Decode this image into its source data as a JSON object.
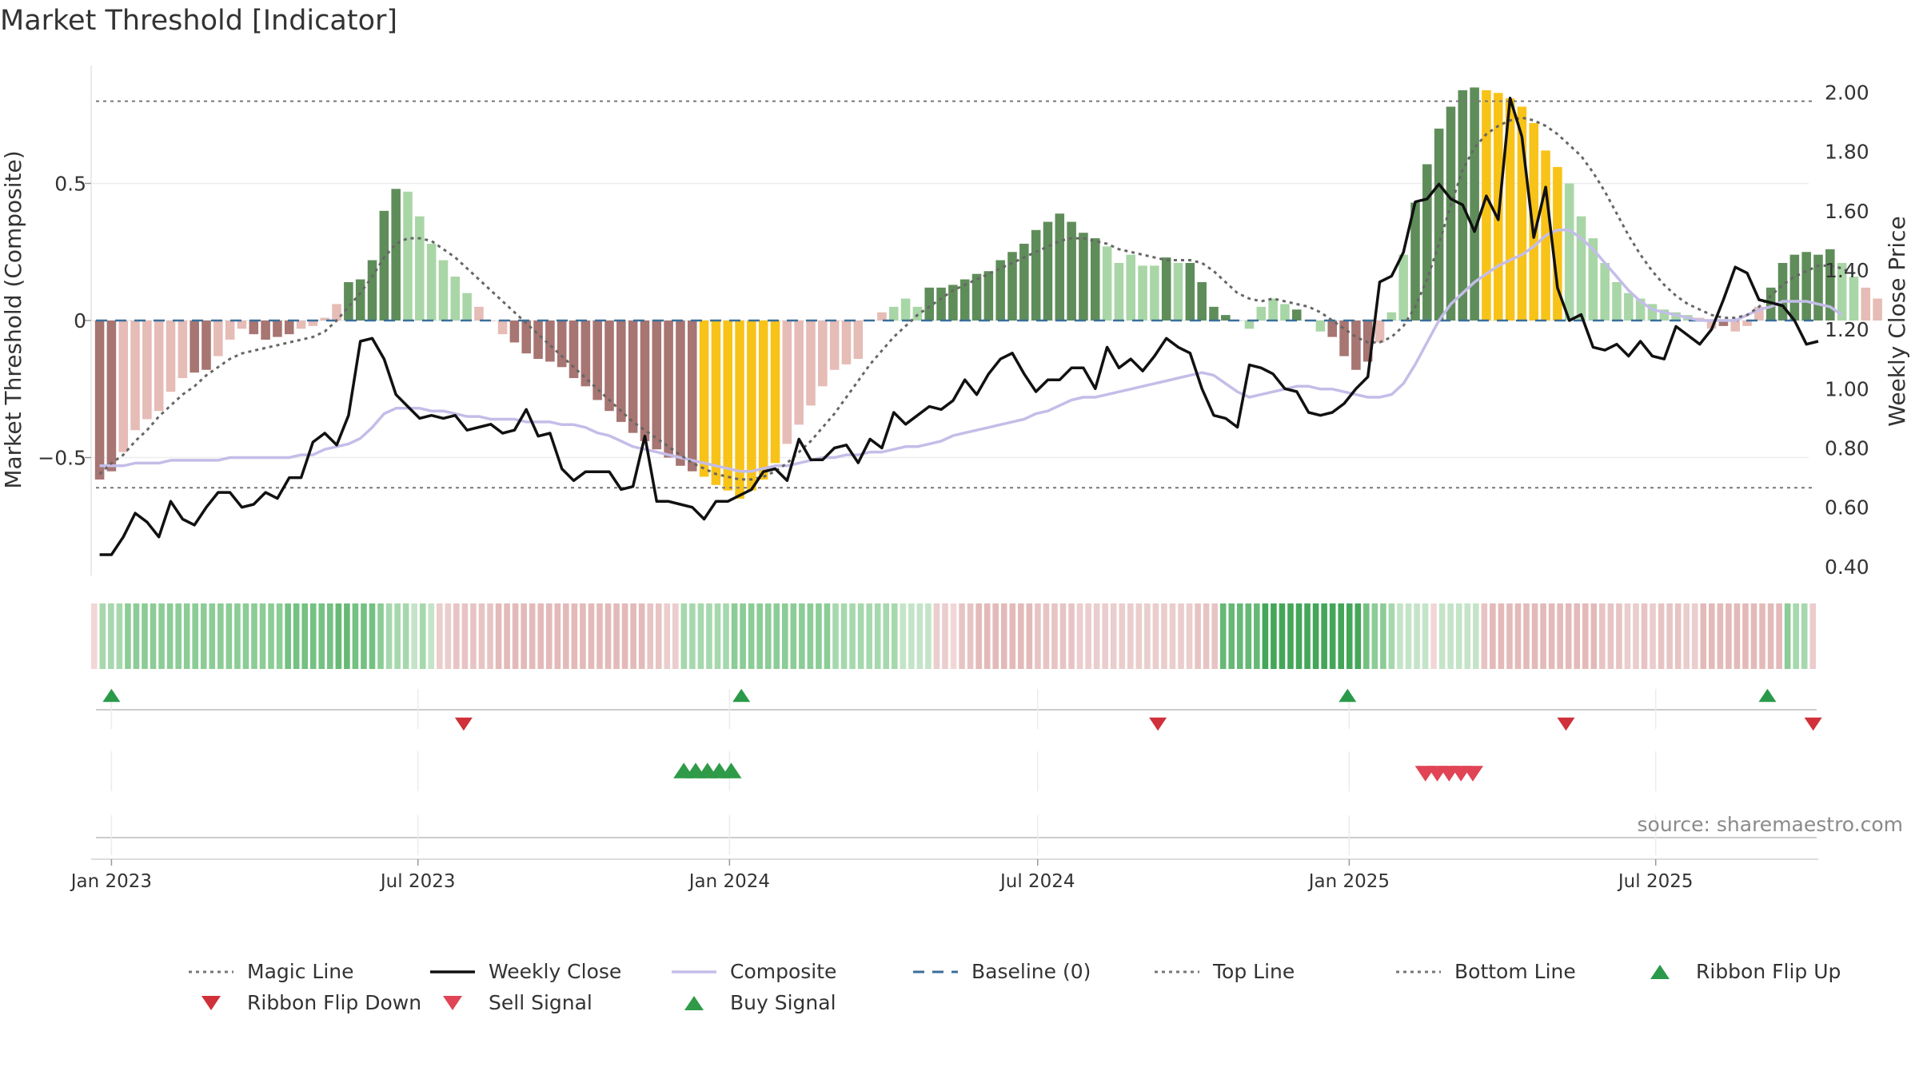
{
  "chart_data": {
    "type": "bar",
    "title": "Market Threshold [Indicator]",
    "ylabel_left": "Market Threshold (Composite)",
    "ylabel_right": "Weekly Close Price",
    "source": "source: sharemaestro.com",
    "yticks_left": [
      {
        "value": 0.5,
        "label": "0.5"
      },
      {
        "value": 0,
        "label": "0"
      },
      {
        "value": -0.5,
        "label": "−0.5"
      }
    ],
    "yticks_right": [
      "0.40",
      "0.60",
      "0.80",
      "1.00",
      "1.20",
      "1.40",
      "1.60",
      "1.80",
      "2.00"
    ],
    "xticks": [
      {
        "date": "2023-01-01",
        "label": "Jan 2023"
      },
      {
        "date": "2023-07-01",
        "label": "Jul 2023"
      },
      {
        "date": "2024-01-01",
        "label": "Jan 2024"
      },
      {
        "date": "2024-07-01",
        "label": "Jul 2024"
      },
      {
        "date": "2025-01-01",
        "label": "Jan 2025"
      },
      {
        "date": "2025-07-01",
        "label": "Jul 2025"
      }
    ],
    "x_range": [
      "2022-12-20",
      "2025-10-05"
    ],
    "ylim_left": [
      -0.93,
      0.93
    ],
    "ylim_right": [
      0.37,
      2.09
    ],
    "top_line": 0.8,
    "bottom_line": -0.61,
    "start_date": "2022-12-25",
    "week_step_days": 7,
    "composite_bars": [
      -0.58,
      -0.55,
      -0.48,
      -0.4,
      -0.36,
      -0.33,
      -0.26,
      -0.21,
      -0.19,
      -0.18,
      -0.13,
      -0.07,
      -0.03,
      -0.05,
      -0.07,
      -0.06,
      -0.05,
      -0.03,
      -0.02,
      0.01,
      0.06,
      0.14,
      0.15,
      0.22,
      0.4,
      0.48,
      0.47,
      0.38,
      0.28,
      0.22,
      0.16,
      0.1,
      0.05,
      0.0,
      -0.05,
      -0.08,
      -0.12,
      -0.14,
      -0.15,
      -0.17,
      -0.21,
      -0.24,
      -0.29,
      -0.33,
      -0.37,
      -0.41,
      -0.44,
      -0.47,
      -0.5,
      -0.53,
      -0.55,
      -0.57,
      -0.6,
      -0.62,
      -0.65,
      -0.62,
      -0.58,
      -0.52,
      -0.45,
      -0.38,
      -0.31,
      -0.24,
      -0.18,
      -0.16,
      -0.14,
      0.0,
      0.03,
      0.05,
      0.08,
      0.05,
      0.12,
      0.12,
      0.13,
      0.15,
      0.17,
      0.18,
      0.22,
      0.25,
      0.28,
      0.33,
      0.36,
      0.39,
      0.36,
      0.32,
      0.3,
      0.27,
      0.21,
      0.24,
      0.2,
      0.2,
      0.23,
      0.21,
      0.21,
      0.14,
      0.05,
      0.02,
      0.0,
      -0.03,
      0.05,
      0.08,
      0.06,
      0.04,
      0.0,
      -0.04,
      -0.06,
      -0.13,
      -0.18,
      -0.15,
      -0.08,
      0.03,
      0.24,
      0.43,
      0.57,
      0.7,
      0.78,
      0.84,
      0.85,
      0.84,
      0.83,
      0.81,
      0.78,
      0.72,
      0.62,
      0.56,
      0.5,
      0.38,
      0.3,
      0.21,
      0.14,
      0.1,
      0.08,
      0.06,
      0.04,
      0.03,
      0.02,
      0.01,
      -0.03,
      -0.02,
      -0.04,
      -0.02,
      0.05,
      0.12,
      0.21,
      0.24,
      0.25,
      0.24,
      0.26,
      0.21,
      0.16,
      0.12,
      0.08
    ],
    "bar_class_key": {
      "p": "positive rising",
      "P": "positive falling",
      "n": "negative rising",
      "N": "negative falling",
      "y": "extreme"
    },
    "bar_classes": "NNnnnnnnNNnnnNNNNnnnnPPPPPppppppnnnNNNNNNNNNNNNNNNNyyyyyyynnnnnnnnnpppPPPPPPPPPPPPPPPpppppPpPPPPpppppPppNNNNnppPPPPPPyyyyyyypppppppppppnnNnnnPPPPPPppnn",
    "magic_line": [
      -0.56,
      -0.52,
      -0.49,
      -0.44,
      -0.4,
      -0.35,
      -0.31,
      -0.27,
      -0.24,
      -0.2,
      -0.17,
      -0.14,
      -0.12,
      -0.11,
      -0.1,
      -0.09,
      -0.08,
      -0.07,
      -0.06,
      -0.04,
      0.0,
      0.05,
      0.1,
      0.16,
      0.23,
      0.28,
      0.3,
      0.3,
      0.29,
      0.26,
      0.23,
      0.19,
      0.15,
      0.11,
      0.07,
      0.03,
      -0.01,
      -0.05,
      -0.09,
      -0.13,
      -0.17,
      -0.21,
      -0.25,
      -0.29,
      -0.33,
      -0.37,
      -0.4,
      -0.43,
      -0.46,
      -0.49,
      -0.52,
      -0.54,
      -0.56,
      -0.57,
      -0.58,
      -0.58,
      -0.57,
      -0.55,
      -0.52,
      -0.48,
      -0.44,
      -0.39,
      -0.34,
      -0.28,
      -0.22,
      -0.16,
      -0.11,
      -0.06,
      -0.02,
      0.02,
      0.05,
      0.08,
      0.11,
      0.13,
      0.15,
      0.17,
      0.19,
      0.21,
      0.23,
      0.25,
      0.27,
      0.29,
      0.3,
      0.3,
      0.29,
      0.28,
      0.26,
      0.25,
      0.24,
      0.23,
      0.22,
      0.22,
      0.22,
      0.21,
      0.18,
      0.14,
      0.1,
      0.08,
      0.07,
      0.08,
      0.07,
      0.06,
      0.05,
      0.03,
      0.0,
      -0.03,
      -0.06,
      -0.08,
      -0.08,
      -0.06,
      -0.02,
      0.05,
      0.15,
      0.28,
      0.42,
      0.55,
      0.63,
      0.68,
      0.71,
      0.73,
      0.74,
      0.73,
      0.71,
      0.68,
      0.64,
      0.6,
      0.54,
      0.47,
      0.39,
      0.31,
      0.24,
      0.18,
      0.13,
      0.09,
      0.06,
      0.04,
      0.02,
      0.01,
      0.01,
      0.02,
      0.05,
      0.09,
      0.13,
      0.16,
      0.18,
      0.2,
      0.2,
      0.19,
      0.17
    ],
    "weekly_close": [
      0.44,
      0.44,
      0.5,
      0.58,
      0.55,
      0.5,
      0.62,
      0.56,
      0.54,
      0.6,
      0.65,
      0.65,
      0.6,
      0.61,
      0.65,
      0.63,
      0.7,
      0.7,
      0.82,
      0.85,
      0.81,
      0.91,
      1.16,
      1.17,
      1.1,
      0.98,
      0.94,
      0.9,
      0.91,
      0.9,
      0.91,
      0.86,
      0.87,
      0.88,
      0.85,
      0.86,
      0.93,
      0.84,
      0.85,
      0.73,
      0.69,
      0.72,
      0.72,
      0.72,
      0.66,
      0.67,
      0.84,
      0.62,
      0.62,
      0.61,
      0.6,
      0.56,
      0.62,
      0.62,
      0.64,
      0.66,
      0.72,
      0.73,
      0.69,
      0.83,
      0.76,
      0.76,
      0.8,
      0.81,
      0.75,
      0.83,
      0.8,
      0.92,
      0.88,
      0.91,
      0.94,
      0.93,
      0.96,
      1.03,
      0.98,
      1.05,
      1.1,
      1.12,
      1.05,
      0.99,
      1.03,
      1.03,
      1.07,
      1.07,
      1.0,
      1.14,
      1.07,
      1.1,
      1.06,
      1.11,
      1.17,
      1.14,
      1.12,
      1.0,
      0.91,
      0.9,
      0.87,
      1.08,
      1.07,
      1.05,
      1.0,
      0.99,
      0.92,
      0.91,
      0.92,
      0.95,
      1.0,
      1.04,
      1.36,
      1.38,
      1.46,
      1.63,
      1.64,
      1.69,
      1.64,
      1.62,
      1.53,
      1.65,
      1.57,
      1.98,
      1.85,
      1.51,
      1.68,
      1.34,
      1.23,
      1.25,
      1.14,
      1.13,
      1.15,
      1.11,
      1.16,
      1.11,
      1.1,
      1.21,
      1.18,
      1.15,
      1.2,
      1.3,
      1.41,
      1.39,
      1.3,
      1.29,
      1.28,
      1.23,
      1.15,
      1.16
    ],
    "composite_line": [
      -0.53,
      -0.53,
      -0.53,
      -0.52,
      -0.52,
      -0.52,
      -0.51,
      -0.51,
      -0.51,
      -0.51,
      -0.51,
      -0.5,
      -0.5,
      -0.5,
      -0.5,
      -0.5,
      -0.5,
      -0.49,
      -0.49,
      -0.47,
      -0.46,
      -0.45,
      -0.43,
      -0.39,
      -0.34,
      -0.32,
      -0.32,
      -0.32,
      -0.33,
      -0.33,
      -0.34,
      -0.35,
      -0.35,
      -0.36,
      -0.36,
      -0.36,
      -0.37,
      -0.37,
      -0.37,
      -0.38,
      -0.38,
      -0.39,
      -0.41,
      -0.42,
      -0.44,
      -0.46,
      -0.47,
      -0.48,
      -0.49,
      -0.5,
      -0.51,
      -0.52,
      -0.53,
      -0.54,
      -0.55,
      -0.55,
      -0.54,
      -0.53,
      -0.53,
      -0.52,
      -0.51,
      -0.5,
      -0.5,
      -0.49,
      -0.49,
      -0.48,
      -0.48,
      -0.47,
      -0.46,
      -0.46,
      -0.45,
      -0.44,
      -0.42,
      -0.41,
      -0.4,
      -0.39,
      -0.38,
      -0.37,
      -0.36,
      -0.34,
      -0.33,
      -0.31,
      -0.29,
      -0.28,
      -0.28,
      -0.27,
      -0.26,
      -0.25,
      -0.24,
      -0.23,
      -0.22,
      -0.21,
      -0.2,
      -0.19,
      -0.2,
      -0.23,
      -0.26,
      -0.28,
      -0.27,
      -0.26,
      -0.25,
      -0.24,
      -0.24,
      -0.25,
      -0.25,
      -0.26,
      -0.27,
      -0.28,
      -0.28,
      -0.27,
      -0.23,
      -0.16,
      -0.08,
      0.0,
      0.06,
      0.1,
      0.14,
      0.17,
      0.2,
      0.22,
      0.24,
      0.27,
      0.31,
      0.33,
      0.33,
      0.3,
      0.26,
      0.21,
      0.16,
      0.11,
      0.07,
      0.04,
      0.03,
      0.02,
      0.01,
      0.0,
      0.0,
      0.0,
      0.0,
      0.02,
      0.04,
      0.05,
      0.07,
      0.07,
      0.07,
      0.06,
      0.05,
      0.02
    ],
    "ribbon_colors": [
      "#f2d6d6",
      "#c4e4c8",
      "#a6d8ad",
      "#8ccc96",
      "#74c182",
      "#66b975",
      "#44a659",
      "#eacdcc",
      "#e7c4c3",
      "#e3bab9",
      "#dfb1b0",
      "#dba7a6",
      "#d99e9d",
      "#d59796"
    ],
    "ribbon": "0222333333333333333333344444455444322212177888889999999999999999998877222222333333333333222222221111770889999999888887777777777777788855555666666666666433211110111118999999999999988877878887799999999993227",
    "ribbon_flip_up": [
      "2023-01-01",
      "2024-01-08",
      "2024-12-31",
      "2025-09-05"
    ],
    "ribbon_flip_down": [
      "2023-07-28",
      "2024-09-10",
      "2025-05-09",
      "2025-10-02"
    ],
    "buy_signal": [
      "2023-12-05",
      "2023-12-12",
      "2023-12-19",
      "2023-12-26",
      "2024-01-02"
    ],
    "sell_signal": [
      "2025-02-15",
      "2025-02-22",
      "2025-03-01",
      "2025-03-08",
      "2025-03-15"
    ],
    "colors": {
      "positive_rising": "#a9d6a6",
      "positive_falling": "#5f8d5a",
      "negative_rising": "#e6bcb6",
      "negative_falling": "#a77572",
      "extreme": "#f8c318",
      "weekly_close": "#111111",
      "composite_line": "#c4bde8",
      "magic_line": "#666666",
      "baseline": "#3a6f9a",
      "guide_lines": "#777777",
      "flip_up": "#2a9a4a",
      "flip_down": "#d0303a",
      "buy": "#2f9b48",
      "sell": "#e04455"
    },
    "legend": [
      {
        "label": "Magic Line",
        "icon": "dotted-line"
      },
      {
        "label": "Weekly Close",
        "icon": "solid-line"
      },
      {
        "label": "Composite",
        "icon": "lavender-line"
      },
      {
        "label": "Baseline (0)",
        "icon": "dashed-line"
      },
      {
        "label": "Top Line",
        "icon": "dotted-line"
      },
      {
        "label": "Bottom Line",
        "icon": "dotted-line"
      },
      {
        "label": "Ribbon Flip Up",
        "icon": "triangle-up"
      },
      {
        "label": "Ribbon Flip Down",
        "icon": "triangle-down"
      },
      {
        "label": "Sell Signal",
        "icon": "triangle-down"
      },
      {
        "label": "Buy Signal",
        "icon": "triangle-up"
      }
    ]
  }
}
